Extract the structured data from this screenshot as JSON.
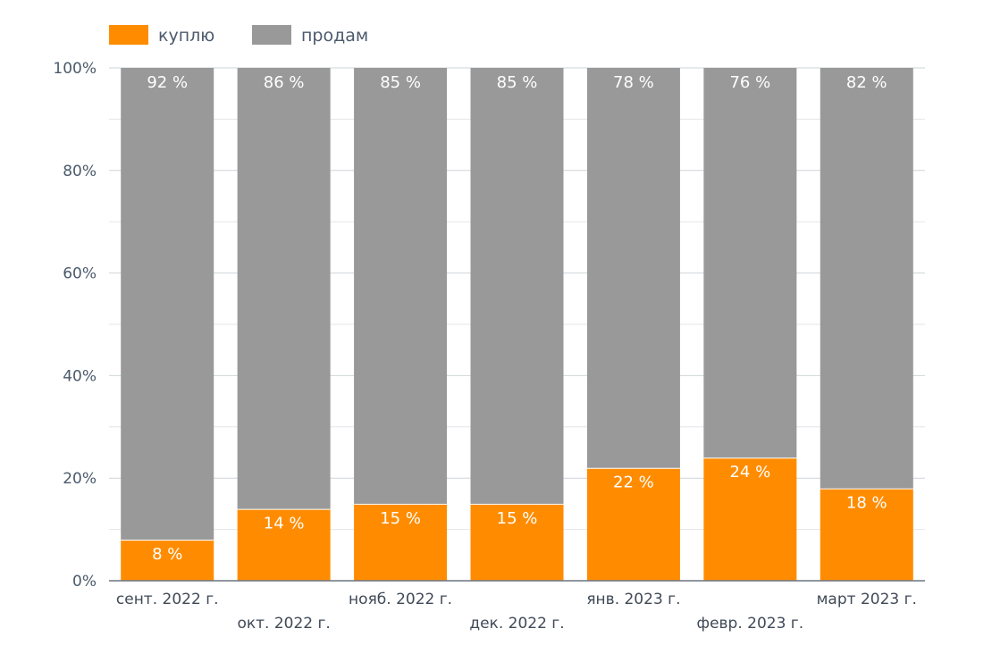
{
  "chart_data": {
    "type": "bar",
    "stacked": true,
    "normalized": true,
    "categories": [
      "сент. 2022 г.",
      "окт. 2022 г.",
      "нояб. 2022 г.",
      "дек. 2022 г.",
      "янв. 2023 г.",
      "февр. 2023 г.",
      "март 2023 г."
    ],
    "series": [
      {
        "name": "куплю",
        "color": "#ff8c00",
        "values": [
          8,
          14,
          15,
          15,
          22,
          24,
          18
        ],
        "labels": [
          "8 %",
          "14 %",
          "15 %",
          "15 %",
          "22 %",
          "24 %",
          "18 %"
        ]
      },
      {
        "name": "продам",
        "color": "#999999",
        "values": [
          92,
          86,
          85,
          85,
          78,
          76,
          82
        ],
        "labels": [
          "92 %",
          "86 %",
          "85 %",
          "85 %",
          "78 %",
          "76 %",
          "82 %"
        ]
      }
    ],
    "ylim": [
      0,
      100
    ],
    "yticks": [
      "0%",
      "20%",
      "40%",
      "60%",
      "80%",
      "100%"
    ],
    "grid": true,
    "legend_position": "top-left",
    "title": "",
    "xlabel": "",
    "ylabel": ""
  }
}
